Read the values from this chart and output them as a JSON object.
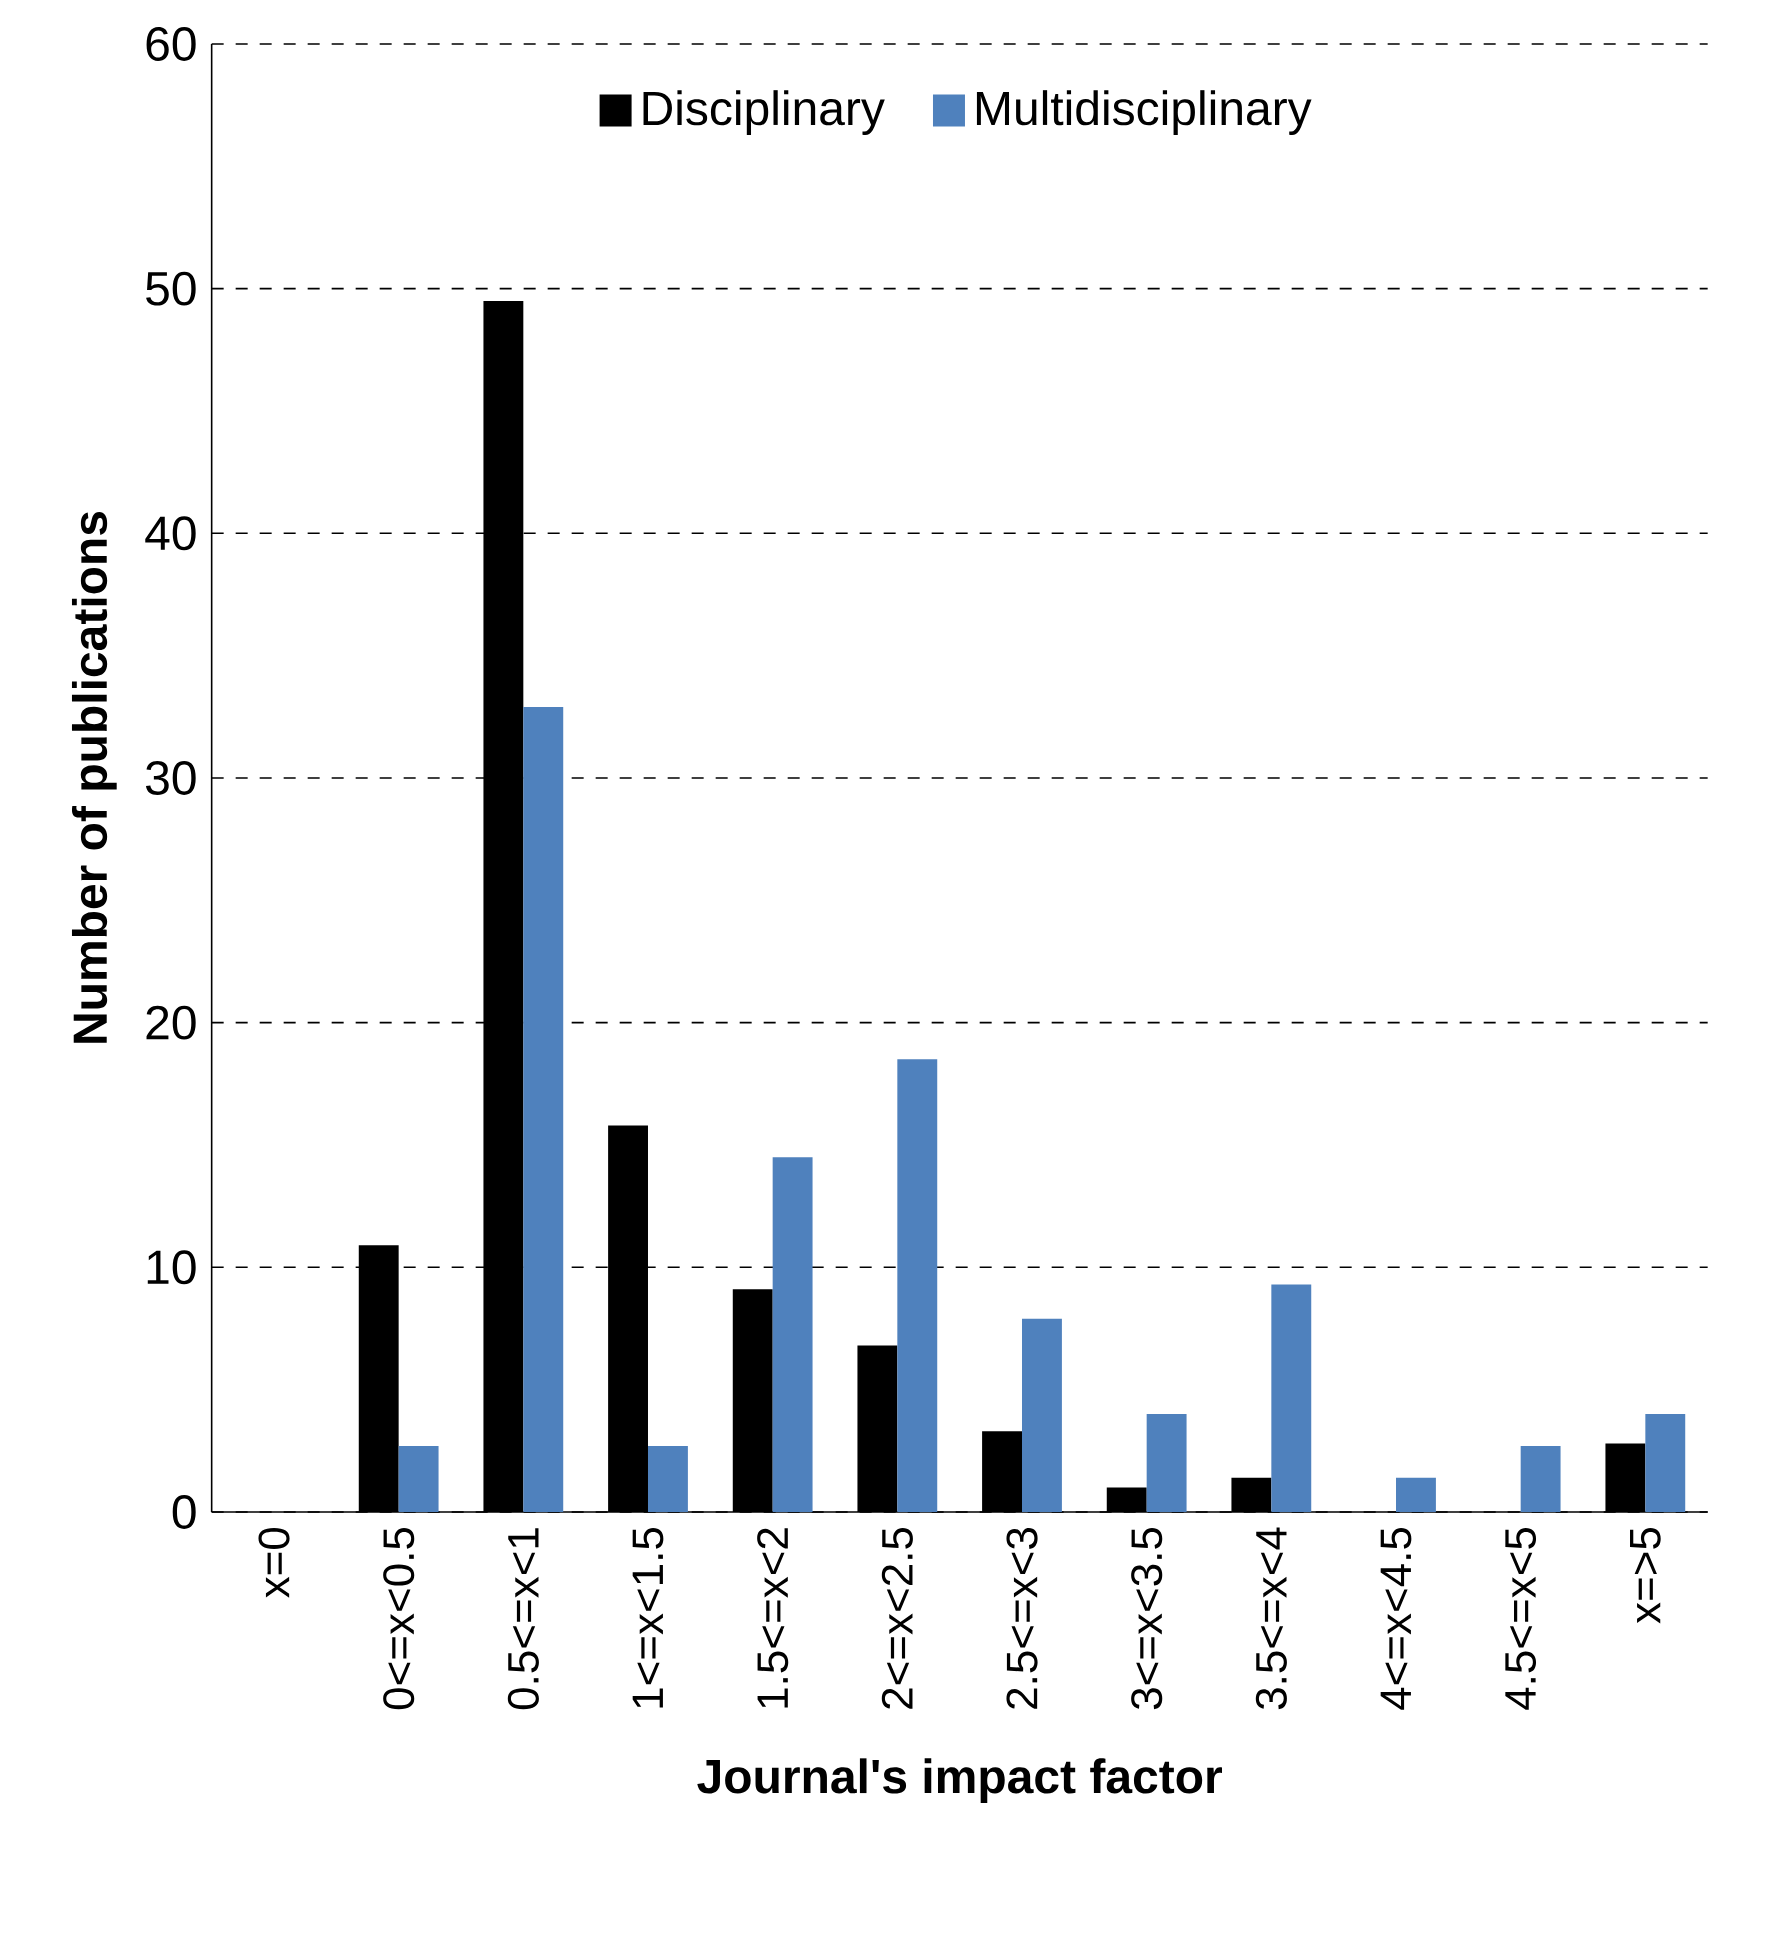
{
  "chart_data": {
    "type": "bar",
    "xlabel": "Journal's impact factor",
    "ylabel": "Number of publications",
    "categories": [
      "x=0",
      "0<=x<0.5",
      "0.5<=x<1",
      "1<=x<1.5",
      "1.5<=x<2",
      "2<=x<2.5",
      "2.5<=x<3",
      "3<=x<3.5",
      "3.5<=x<4",
      "4<=x<4.5",
      "4.5<=x<5",
      "x=>5"
    ],
    "series": [
      {
        "name": "Disciplinary",
        "color": "#000000",
        "values": [
          0,
          10.9,
          49.5,
          15.8,
          9.1,
          6.8,
          3.3,
          1.0,
          1.4,
          0,
          0,
          2.8
        ]
      },
      {
        "name": "Multidisciplinary",
        "color": "#4f81bd",
        "values": [
          0,
          2.7,
          32.9,
          2.7,
          14.5,
          18.5,
          7.9,
          4.0,
          9.3,
          1.4,
          2.7,
          4.0
        ]
      }
    ],
    "ylim": [
      0,
      60
    ],
    "yticks": [
      0,
      10,
      20,
      30,
      40,
      50,
      60
    ],
    "grid": "y",
    "legend": "top"
  }
}
